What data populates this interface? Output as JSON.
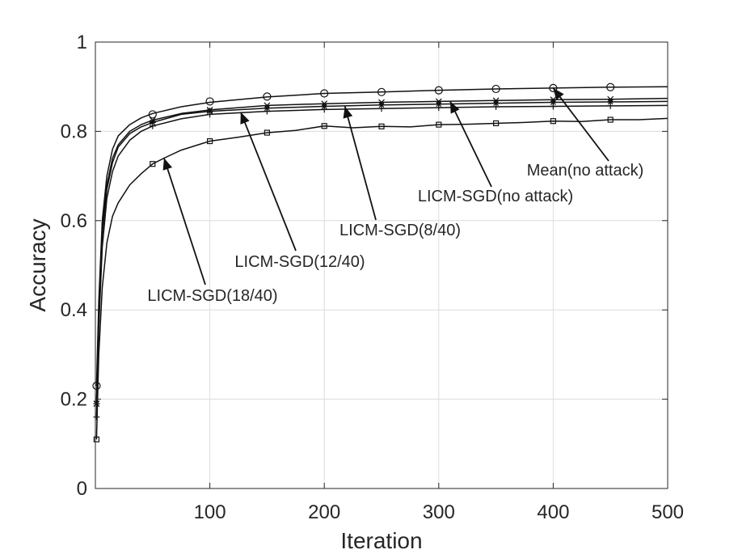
{
  "chart_data": {
    "type": "line",
    "xlabel": "Iteration",
    "ylabel": "Accuracy",
    "xlim": [
      0,
      500
    ],
    "ylim": [
      0,
      1
    ],
    "xticks": [
      100,
      200,
      300,
      400,
      500
    ],
    "xtick_labels": [
      "100",
      "200",
      "300",
      "400",
      "500"
    ],
    "yticks": [
      0,
      0.2,
      0.4,
      0.6,
      0.8,
      1
    ],
    "ytick_labels": [
      "0",
      "0.2",
      "0.4",
      "0.6",
      "0.8",
      "1"
    ],
    "grid": true,
    "series": [
      {
        "name": "Mean(no attack)",
        "marker": "circle",
        "x": [
          1,
          3,
          6,
          10,
          15,
          20,
          30,
          40,
          50,
          75,
          100,
          150,
          200,
          250,
          300,
          350,
          400,
          450,
          500
        ],
        "y": [
          0.23,
          0.42,
          0.6,
          0.7,
          0.76,
          0.79,
          0.815,
          0.83,
          0.84,
          0.855,
          0.865,
          0.877,
          0.885,
          0.888,
          0.892,
          0.895,
          0.897,
          0.899,
          0.9
        ],
        "marker_x": [
          1,
          50,
          100,
          150,
          200,
          250,
          300,
          350,
          400,
          450
        ],
        "marker_y": [
          0.23,
          0.838,
          0.867,
          0.878,
          0.885,
          0.888,
          0.892,
          0.895,
          0.897,
          0.899
        ]
      },
      {
        "name": "LICM-SGD(no attack)",
        "marker": "x",
        "x": [
          1,
          3,
          6,
          10,
          15,
          20,
          30,
          40,
          50,
          75,
          100,
          150,
          200,
          250,
          300,
          350,
          400,
          450,
          500
        ],
        "y": [
          0.19,
          0.4,
          0.58,
          0.68,
          0.74,
          0.77,
          0.8,
          0.815,
          0.825,
          0.84,
          0.848,
          0.858,
          0.862,
          0.865,
          0.867,
          0.869,
          0.871,
          0.872,
          0.874
        ],
        "marker_x": [
          1,
          50,
          100,
          150,
          200,
          250,
          300,
          350,
          400,
          450
        ],
        "marker_y": [
          0.19,
          0.825,
          0.848,
          0.858,
          0.862,
          0.865,
          0.867,
          0.869,
          0.871,
          0.872
        ]
      },
      {
        "name": "LICM-SGD(8/40)",
        "marker": "asterisk",
        "x": [
          1,
          3,
          6,
          10,
          15,
          20,
          30,
          40,
          50,
          75,
          100,
          150,
          200,
          250,
          300,
          350,
          400,
          450,
          500
        ],
        "y": [
          0.19,
          0.39,
          0.57,
          0.67,
          0.73,
          0.765,
          0.795,
          0.81,
          0.82,
          0.838,
          0.845,
          0.852,
          0.856,
          0.859,
          0.861,
          0.863,
          0.865,
          0.866,
          0.867
        ],
        "marker_x": [
          1,
          50,
          100,
          150,
          200,
          250,
          300,
          350,
          400,
          450
        ],
        "marker_y": [
          0.19,
          0.82,
          0.845,
          0.852,
          0.856,
          0.859,
          0.861,
          0.863,
          0.865,
          0.866
        ]
      },
      {
        "name": "LICM-SGD(12/40)",
        "marker": "plus",
        "x": [
          1,
          3,
          6,
          10,
          15,
          20,
          30,
          40,
          50,
          75,
          100,
          150,
          200,
          250,
          300,
          350,
          400,
          450,
          500
        ],
        "y": [
          0.16,
          0.36,
          0.54,
          0.65,
          0.71,
          0.745,
          0.78,
          0.8,
          0.812,
          0.828,
          0.838,
          0.845,
          0.849,
          0.851,
          0.853,
          0.855,
          0.856,
          0.857,
          0.858
        ],
        "marker_x": [
          1,
          50,
          100,
          150,
          200,
          250,
          300,
          350,
          400,
          450
        ],
        "marker_y": [
          0.16,
          0.812,
          0.838,
          0.845,
          0.849,
          0.851,
          0.853,
          0.855,
          0.856,
          0.857
        ]
      },
      {
        "name": "LICM-SGD(18/40)",
        "marker": "square",
        "x": [
          1,
          3,
          6,
          10,
          15,
          20,
          25,
          30,
          40,
          50,
          60,
          75,
          100,
          125,
          150,
          175,
          200,
          225,
          250,
          275,
          300,
          325,
          350,
          375,
          400,
          425,
          450,
          475,
          500
        ],
        "y": [
          0.11,
          0.3,
          0.45,
          0.55,
          0.61,
          0.64,
          0.66,
          0.68,
          0.705,
          0.727,
          0.74,
          0.758,
          0.778,
          0.787,
          0.797,
          0.802,
          0.812,
          0.808,
          0.811,
          0.81,
          0.815,
          0.816,
          0.818,
          0.82,
          0.823,
          0.822,
          0.826,
          0.826,
          0.829
        ],
        "marker_x": [
          1,
          50,
          100,
          150,
          200,
          250,
          300,
          350,
          400,
          450
        ],
        "marker_y": [
          0.11,
          0.727,
          0.778,
          0.797,
          0.812,
          0.811,
          0.815,
          0.818,
          0.823,
          0.826
        ]
      }
    ],
    "annotations": [
      {
        "text": "Mean(no attack)",
        "arrow_to": [
          400,
          0.897
        ]
      },
      {
        "text": "LICM-SGD(no attack)",
        "arrow_to": [
          310,
          0.867
        ]
      },
      {
        "text": "LICM-SGD(8/40)",
        "arrow_to": [
          218,
          0.856
        ]
      },
      {
        "text": "LICM-SGD(12/40)",
        "arrow_to": [
          127,
          0.843
        ]
      },
      {
        "text": "LICM-SGD(18/40)",
        "arrow_to": [
          60,
          0.74
        ]
      }
    ]
  }
}
